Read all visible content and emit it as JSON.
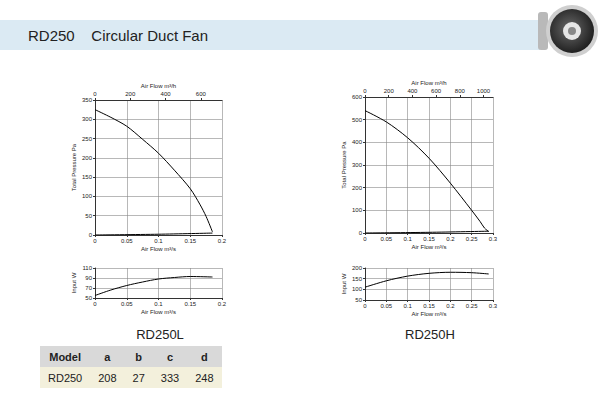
{
  "header": {
    "title": "RD250",
    "subtitle": "Circular Duct Fan"
  },
  "chart_data": [
    {
      "type": "line",
      "title": "RD250L",
      "color": "#000000",
      "grid": true,
      "x_label": "Air Flow m³/s",
      "y_label": "Total Pressure Pa",
      "x2_label": "Air Flow m³/h",
      "xlim": [
        0,
        0.2
      ],
      "xticks": [
        0,
        0.05,
        0.1,
        0.15,
        0.2
      ],
      "x2lim": [
        0,
        720
      ],
      "x2ticks": [
        0,
        200,
        400,
        600
      ],
      "ylim": [
        0,
        350
      ],
      "yticks": [
        0,
        50,
        100,
        150,
        200,
        250,
        300,
        350
      ],
      "series": [
        {
          "x": [
            0,
            0.025,
            0.05,
            0.075,
            0.1,
            0.125,
            0.15,
            0.165,
            0.175,
            0.185
          ],
          "values": [
            325,
            305,
            282,
            248,
            212,
            168,
            120,
            80,
            48,
            8
          ]
        },
        {
          "x": [
            0,
            0.1,
            0.185
          ],
          "values": [
            0,
            2,
            5
          ]
        }
      ]
    },
    {
      "type": "line",
      "color": "#000000",
      "grid": true,
      "x_label": "Air Flow m³/s",
      "y_label": "Input W",
      "xlim": [
        0,
        0.2
      ],
      "xticks": [
        0,
        0.05,
        0.1,
        0.15,
        0.2
      ],
      "ylim": [
        50,
        110
      ],
      "yticks": [
        50,
        70,
        90,
        110
      ],
      "series": [
        {
          "x": [
            0,
            0.025,
            0.05,
            0.075,
            0.1,
            0.125,
            0.15,
            0.185
          ],
          "values": [
            55,
            66,
            75,
            82,
            88,
            91,
            93,
            92
          ]
        }
      ]
    },
    {
      "type": "line",
      "title": "RD250H",
      "color": "#000000",
      "grid": true,
      "x_label": "Air Flow m³/s",
      "y_label": "Total Pressure Pa",
      "x2_label": "Air Flow m³/h",
      "xlim": [
        0,
        0.3
      ],
      "xticks": [
        0,
        0.05,
        0.1,
        0.15,
        0.2,
        0.25,
        0.3
      ],
      "x2lim": [
        0,
        1080
      ],
      "x2ticks": [
        0,
        200,
        400,
        600,
        800,
        1000
      ],
      "ylim": [
        0,
        600
      ],
      "yticks": [
        0,
        100,
        200,
        300,
        400,
        500,
        600
      ],
      "series": [
        {
          "x": [
            0,
            0.05,
            0.1,
            0.15,
            0.2,
            0.25,
            0.27,
            0.28,
            0.29
          ],
          "values": [
            540,
            490,
            420,
            330,
            220,
            100,
            50,
            22,
            6
          ]
        },
        {
          "x": [
            0,
            0.15,
            0.29
          ],
          "values": [
            0,
            3,
            8
          ]
        }
      ]
    },
    {
      "type": "line",
      "color": "#000000",
      "grid": true,
      "x_label": "Air Flow m³/s",
      "y_label": "Input W",
      "xlim": [
        0,
        0.3
      ],
      "xticks": [
        0,
        0.05,
        0.1,
        0.15,
        0.2,
        0.25,
        0.3
      ],
      "ylim": [
        50,
        200
      ],
      "yticks": [
        50,
        100,
        150,
        200
      ],
      "series": [
        {
          "x": [
            0,
            0.05,
            0.1,
            0.15,
            0.2,
            0.25,
            0.29
          ],
          "values": [
            110,
            140,
            162,
            175,
            180,
            178,
            172
          ]
        }
      ]
    }
  ],
  "table": {
    "columns": [
      "Model",
      "a",
      "b",
      "c",
      "d"
    ],
    "rows": [
      [
        "RD250",
        208,
        27,
        333,
        248
      ]
    ]
  }
}
